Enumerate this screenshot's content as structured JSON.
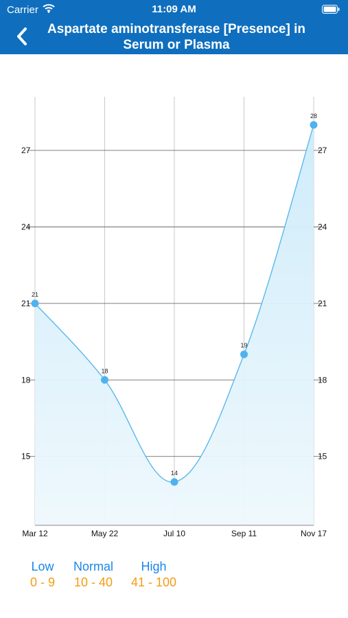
{
  "status_bar": {
    "carrier": "Carrier",
    "time": "11:09 AM"
  },
  "nav": {
    "title_line1": "Aspartate aminotransferase [Presence] in",
    "title_line2": "Serum or Plasma"
  },
  "chart_data": {
    "type": "area",
    "x": [
      "Mar 12",
      "May 22",
      "Jul 10",
      "Sep 11",
      "Nov 17"
    ],
    "values": [
      21,
      18,
      14,
      19,
      28
    ],
    "data_labels": [
      "21",
      "18",
      "14",
      "19",
      "28"
    ],
    "y_ticks": [
      "15",
      "18",
      "21",
      "24",
      "27"
    ],
    "ylim": [
      12.3,
      29.1
    ],
    "y_axis_both_sides": true,
    "grid": true,
    "colors": {
      "line": "#5bb8ec",
      "point": "#4fb2ee",
      "fill": "#d6f0fb"
    }
  },
  "ranges": [
    {
      "label": "Low",
      "value": "0 - 9"
    },
    {
      "label": "Normal",
      "value": "10 - 40"
    },
    {
      "label": "High",
      "value": "41 - 100"
    }
  ]
}
